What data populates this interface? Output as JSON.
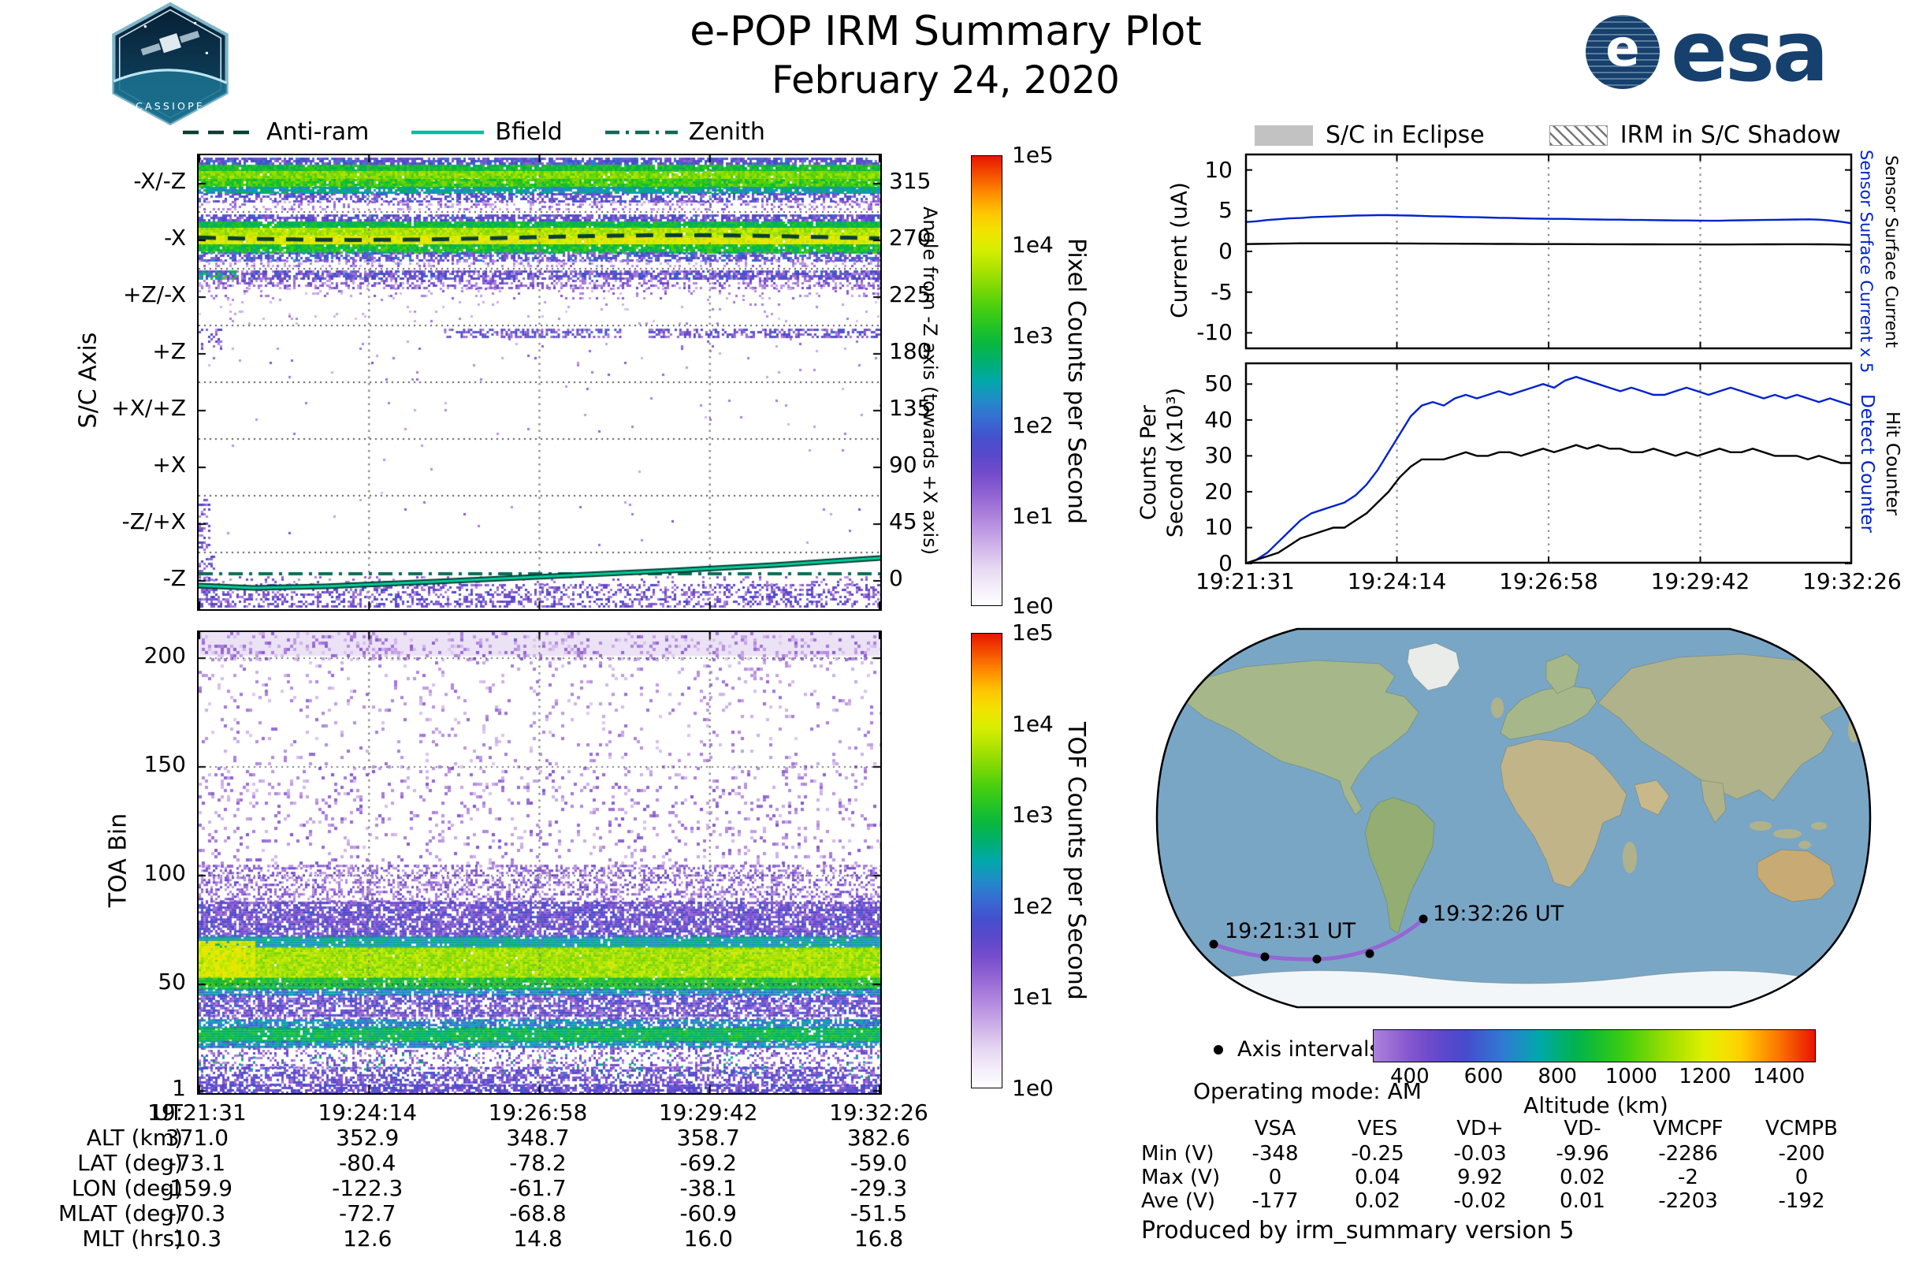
{
  "header": {
    "title": "e-POP IRM Summary Plot",
    "date": "February 24, 2020",
    "badge_text": "CASSIOPE",
    "esa_text": "es a",
    "esa_word": "esa",
    "esa_disc_letter": "e"
  },
  "left_legend": {
    "items": [
      {
        "label": "Anti-ram",
        "style": "dashed",
        "color": "#073f33"
      },
      {
        "label": "Bfield",
        "style": "solid",
        "color": "#00bfa0"
      },
      {
        "label": "Zenith",
        "style": "dashdot",
        "color": "#0b6b58"
      }
    ]
  },
  "right_legend": {
    "eclipse_label": "S/C in Eclipse",
    "shadow_label": "IRM in S/C Shadow"
  },
  "sc_axis_panel": {
    "ylabel": "S/C Axis",
    "right_label": "Angle from -Z axis (towards +X axis)",
    "colorbar_label": "Pixel Counts per Second"
  },
  "toa_panel": {
    "ylabel": "TOA Bin",
    "colorbar_label": "TOF Counts per Second"
  },
  "current_panel": {
    "ylabel": "Current (uA)",
    "right_labels": [
      {
        "text": "Sensor Surface Current x 5",
        "color": "#0022cc"
      },
      {
        "text": "Sensor Surface Current",
        "color": "#000000"
      }
    ]
  },
  "counts_panel": {
    "ylabel_line1": "Counts Per",
    "ylabel_line2": "Second (x10³)",
    "right_labels": [
      {
        "text": "Detect Counter",
        "color": "#0022cc"
      },
      {
        "text": "Hit Counter",
        "color": "#000000"
      }
    ]
  },
  "ephemeris": {
    "row_labels": [
      "UT",
      "ALT (km)",
      "LAT (deg)",
      "LON (deg)",
      "MLAT (deg)",
      "MLT (hrs)"
    ],
    "columns": [
      [
        "19:21:31",
        "371.0",
        "-73.1",
        "-159.9",
        "-70.3",
        "10.3"
      ],
      [
        "19:24:14",
        "352.9",
        "-80.4",
        "-122.3",
        "-72.7",
        "12.6"
      ],
      [
        "19:26:58",
        "348.7",
        "-78.2",
        "-61.7",
        "-68.8",
        "14.8"
      ],
      [
        "19:29:42",
        "358.7",
        "-69.2",
        "-38.1",
        "-60.9",
        "16.0"
      ],
      [
        "19:32:26",
        "382.6",
        "-59.0",
        "-29.3",
        "-51.5",
        "16.8"
      ]
    ]
  },
  "map_section": {
    "start_label": "19:21:31 UT",
    "end_label": "19:32:26 UT",
    "axis_intervals_label": "Axis intervals",
    "operating_mode": "Operating mode: AM",
    "altitude_label": "Altitude (km)"
  },
  "voltage_table": {
    "columns": [
      "",
      "VSA",
      "VES",
      "VD+",
      "VD-",
      "VMCPF",
      "VCMPB"
    ],
    "rows": [
      [
        "Min (V)",
        "-348",
        "-0.25",
        "-0.03",
        "-9.96",
        "-2286",
        "-200"
      ],
      [
        "Max (V)",
        "0",
        "0.04",
        "9.92",
        "0.02",
        "-2",
        "0"
      ],
      [
        "Ave (V)",
        "-177",
        "0.02",
        "-0.02",
        "0.01",
        "-2203",
        "-192"
      ]
    ]
  },
  "footer": {
    "produced_by": "Produced by irm_summary version 5"
  },
  "chart_data": [
    {
      "type": "heatmap",
      "name": "sc_axis_spectrogram",
      "title": "S/C axis pixel counts spectrogram",
      "x_axis": {
        "label": "UT",
        "ticks": [
          "19:21:31",
          "19:24:14",
          "19:26:58",
          "19:29:42",
          "19:32:26"
        ]
      },
      "y_axis": {
        "label": "S/C Axis",
        "categories": [
          "-X/-Z",
          "-X",
          "+Z/-X",
          "+Z",
          "+X/+Z",
          "+X",
          "-Z/+X",
          "-Z"
        ]
      },
      "secondary_y_axis": {
        "label": "Angle from -Z axis (towards +X axis)",
        "ticks": [
          315,
          270,
          225,
          180,
          135,
          90,
          45,
          0
        ]
      },
      "colorbar": {
        "label": "Pixel Counts per Second",
        "scale": "log",
        "ticks": [
          "1e0",
          "1e1",
          "1e2",
          "1e3",
          "1e4",
          "1e5"
        ]
      },
      "features": [
        "bright green-yellow banded emission across the full pass in rows -X/-Z and -X (peak ~1e3-1e4 counts/s)",
        "moderate purple-blue speckle band in +Z/-X",
        "intermittent purple signal in +Z, mainly after ~19:25",
        "rows +X/+Z and +X essentially empty, -Z/+X sparse dots near start",
        "purple speckle band along bottom of -Z row"
      ],
      "overlays": [
        {
          "name": "Anti-ram",
          "line_style": "dashed",
          "angle_deg": 270
        },
        {
          "name": "Bfield",
          "line_style": "solid",
          "angle_deg_start": -2,
          "angle_deg_end": 14
        },
        {
          "name": "Zenith",
          "line_style": "dash-dot",
          "angle_deg": 5
        }
      ]
    },
    {
      "type": "heatmap",
      "name": "toa_spectrogram",
      "y_axis": {
        "label": "TOA Bin",
        "ticks": [
          200,
          150,
          100,
          50,
          1
        ],
        "range": [
          1,
          212
        ]
      },
      "colorbar": {
        "label": "TOF Counts per Second",
        "scale": "log",
        "ticks": [
          "1e0",
          "1e1",
          "1e2",
          "1e3",
          "1e4",
          "1e5"
        ]
      },
      "features": [
        "intense yellow-green band at TOA bins ~50-72 across the full pass, brightest at start",
        "secondary green band at TOA bins ~21-34",
        "dense purple cloud at bins ~72-105",
        "sparse purple speckle up to bin ~212, light wash above bin 200"
      ]
    },
    {
      "type": "line",
      "name": "sensor_surface_current",
      "ylabel": "Current (uA)",
      "ylim": [
        -12,
        12
      ],
      "yticks": [
        10,
        5,
        0,
        -5,
        -10
      ],
      "x_range": [
        "19:21:31",
        "19:32:26"
      ],
      "grid": "dotted vertical at interior UT ticks",
      "series": [
        {
          "name": "Sensor Surface Current x 5",
          "color": "#0022cc",
          "values": [
            3.6,
            3.7,
            3.85,
            3.95,
            4.05,
            4.1,
            4.2,
            4.25,
            4.3,
            4.35,
            4.4,
            4.42,
            4.45,
            4.45,
            4.42,
            4.4,
            4.36,
            4.32,
            4.3,
            4.26,
            4.22,
            4.2,
            4.16,
            4.12,
            4.1,
            4.06,
            4.04,
            4.02,
            4.0,
            4.0,
            3.96,
            3.94,
            3.92,
            3.9,
            3.9,
            3.86,
            3.86,
            3.84,
            3.82,
            3.8,
            3.8,
            3.78,
            3.76,
            3.76,
            3.8,
            3.82,
            3.84,
            3.86,
            3.88,
            3.9,
            3.92,
            3.94,
            3.9,
            3.8,
            3.65,
            3.45
          ]
        },
        {
          "name": "Sensor Surface Current",
          "color": "#000000",
          "values": [
            0.9,
            0.92,
            0.94,
            0.96,
            0.98,
            1.0,
            1.0,
            1.0,
            1.0,
            1.0,
            1.0,
            1.0,
            1.0,
            1.0,
            0.98,
            0.98,
            0.96,
            0.96,
            0.95,
            0.95,
            0.94,
            0.94,
            0.93,
            0.92,
            0.92,
            0.91,
            0.9,
            0.9,
            0.9,
            0.9,
            0.89,
            0.89,
            0.88,
            0.88,
            0.88,
            0.87,
            0.87,
            0.87,
            0.86,
            0.86,
            0.86,
            0.86,
            0.85,
            0.85,
            0.85,
            0.86,
            0.86,
            0.87,
            0.87,
            0.88,
            0.88,
            0.88,
            0.87,
            0.86,
            0.84,
            0.8
          ]
        }
      ]
    },
    {
      "type": "line",
      "name": "counters",
      "ylabel": "Counts Per Second (x10³)",
      "ylim": [
        0,
        56
      ],
      "yticks": [
        50,
        40,
        30,
        20,
        10,
        0
      ],
      "xticks": [
        "19:21:31",
        "19:24:14",
        "19:26:58",
        "19:29:42",
        "19:32:26"
      ],
      "series": [
        {
          "name": "Detect Counter",
          "color": "#0022cc",
          "values": [
            0,
            1,
            3,
            6,
            9,
            12,
            14,
            15,
            16,
            17,
            19,
            22,
            26,
            31,
            36,
            41,
            44,
            45,
            44,
            46,
            47,
            46,
            47,
            48,
            47,
            48,
            49,
            50,
            49,
            51,
            52,
            51,
            50,
            49,
            48,
            49,
            48,
            47,
            47,
            48,
            49,
            48,
            47,
            48,
            49,
            48,
            47,
            46,
            47,
            46,
            47,
            46,
            45,
            46,
            45,
            44
          ]
        },
        {
          "name": "Hit Counter",
          "color": "#000000",
          "values": [
            0,
            1,
            2,
            3,
            5,
            7,
            8,
            9,
            10,
            10,
            12,
            14,
            17,
            20,
            24,
            27,
            29,
            29,
            29,
            30,
            31,
            30,
            30,
            31,
            31,
            30,
            31,
            32,
            31,
            32,
            33,
            32,
            33,
            32,
            32,
            31,
            31,
            32,
            31,
            30,
            31,
            30,
            31,
            32,
            31,
            31,
            32,
            31,
            30,
            30,
            30,
            29,
            30,
            29,
            28,
            28
          ]
        }
      ]
    },
    {
      "type": "map",
      "name": "ground_track",
      "track_start_label": "19:21:31 UT",
      "track_end_label": "19:32:26 UT",
      "track_dots": "5 dots marking the UT axis intervals",
      "track_altitude_km": [
        371.0,
        352.9,
        348.7,
        358.7,
        382.6
      ],
      "colorbar": {
        "label": "Altitude (km)",
        "ticks": [
          400,
          600,
          800,
          1000,
          1200,
          1400
        ],
        "range": [
          300,
          1500
        ]
      }
    }
  ]
}
